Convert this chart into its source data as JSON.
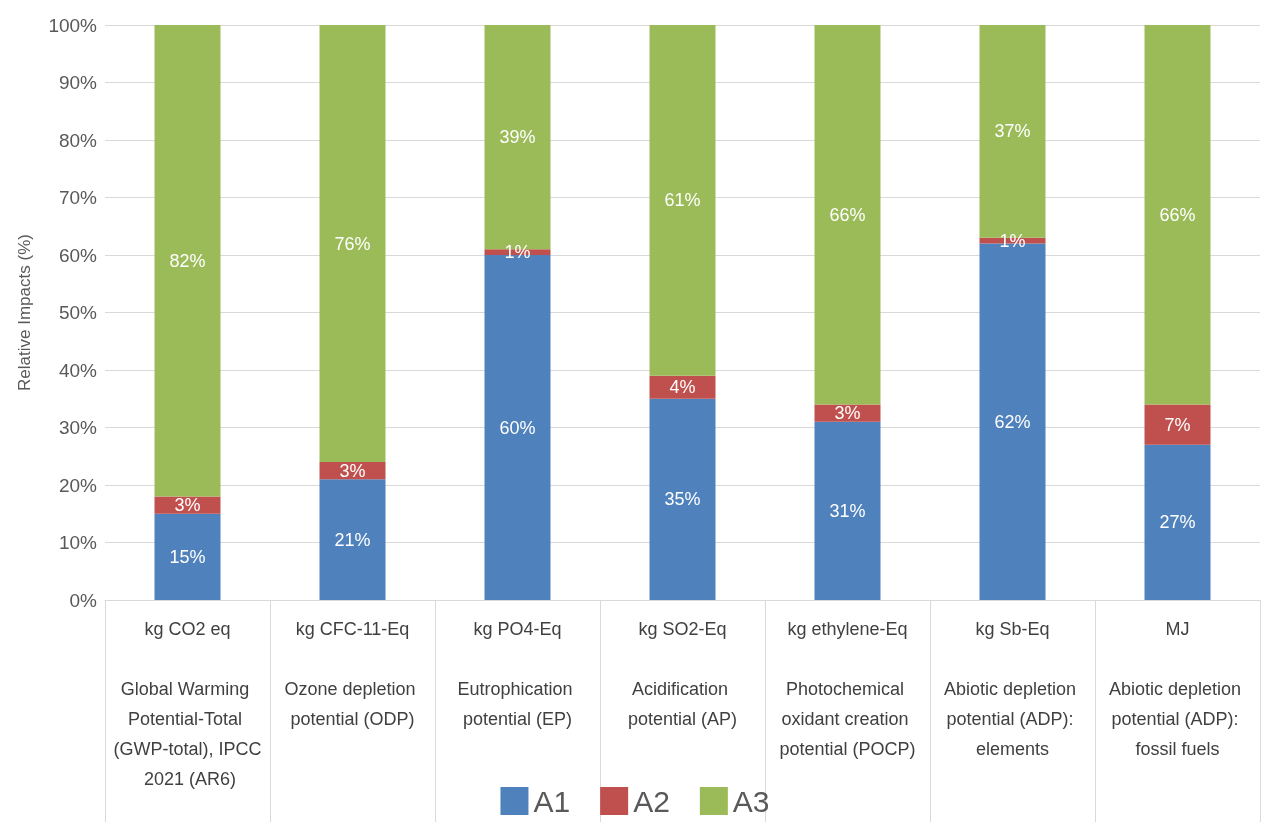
{
  "chart_data": {
    "type": "bar",
    "stacked": true,
    "ylabel": "Relative Impacts (%)",
    "categories": [
      "kg CO2 eq\n\nGlobal Warming Potential-Total (GWP-total), IPCC 2021 (AR6)",
      "kg CFC-11-Eq\n\nOzone depletion potential (ODP)",
      "kg PO4-Eq\n\nEutrophication potential (EP)",
      "kg SO2-Eq\n\nAcidification potential (AP)",
      "kg ethylene-Eq\n\nPhotochemical oxidant creation potential (POCP)",
      "kg Sb-Eq\n\nAbiotic depletion potential (ADP): elements",
      "MJ\n\nAbiotic depletion potential (ADP): fossil fuels"
    ],
    "series": [
      {
        "name": "A1",
        "color": "#4f81bd",
        "values": [
          15,
          21,
          60,
          35,
          31,
          62,
          27
        ],
        "value_labels": [
          "15%",
          "21%",
          "60%",
          "35%",
          "31%",
          "62%",
          "27%"
        ]
      },
      {
        "name": "A2",
        "color": "#c0504d",
        "values": [
          3,
          3,
          1,
          4,
          3,
          1,
          7
        ],
        "value_labels": [
          "3%",
          "3%",
          "1%",
          "4%",
          "3%",
          "1%",
          "7%"
        ]
      },
      {
        "name": "A3",
        "color": "#9bbb59",
        "values": [
          82,
          76,
          39,
          61,
          66,
          37,
          66
        ],
        "value_labels": [
          "82%",
          "76%",
          "39%",
          "61%",
          "66%",
          "37%",
          "66%"
        ]
      }
    ],
    "ylim": [
      0,
      100
    ],
    "yticks": [
      {
        "value": 0,
        "label": "0%"
      },
      {
        "value": 10,
        "label": "10%"
      },
      {
        "value": 20,
        "label": "20%"
      },
      {
        "value": 30,
        "label": "30%"
      },
      {
        "value": 40,
        "label": "40%"
      },
      {
        "value": 50,
        "label": "50%"
      },
      {
        "value": 60,
        "label": "60%"
      },
      {
        "value": 70,
        "label": "70%"
      },
      {
        "value": 80,
        "label": "80%"
      },
      {
        "value": 90,
        "label": "90%"
      },
      {
        "value": 100,
        "label": "100%"
      }
    ],
    "grid": "y",
    "legend": "bottom"
  }
}
